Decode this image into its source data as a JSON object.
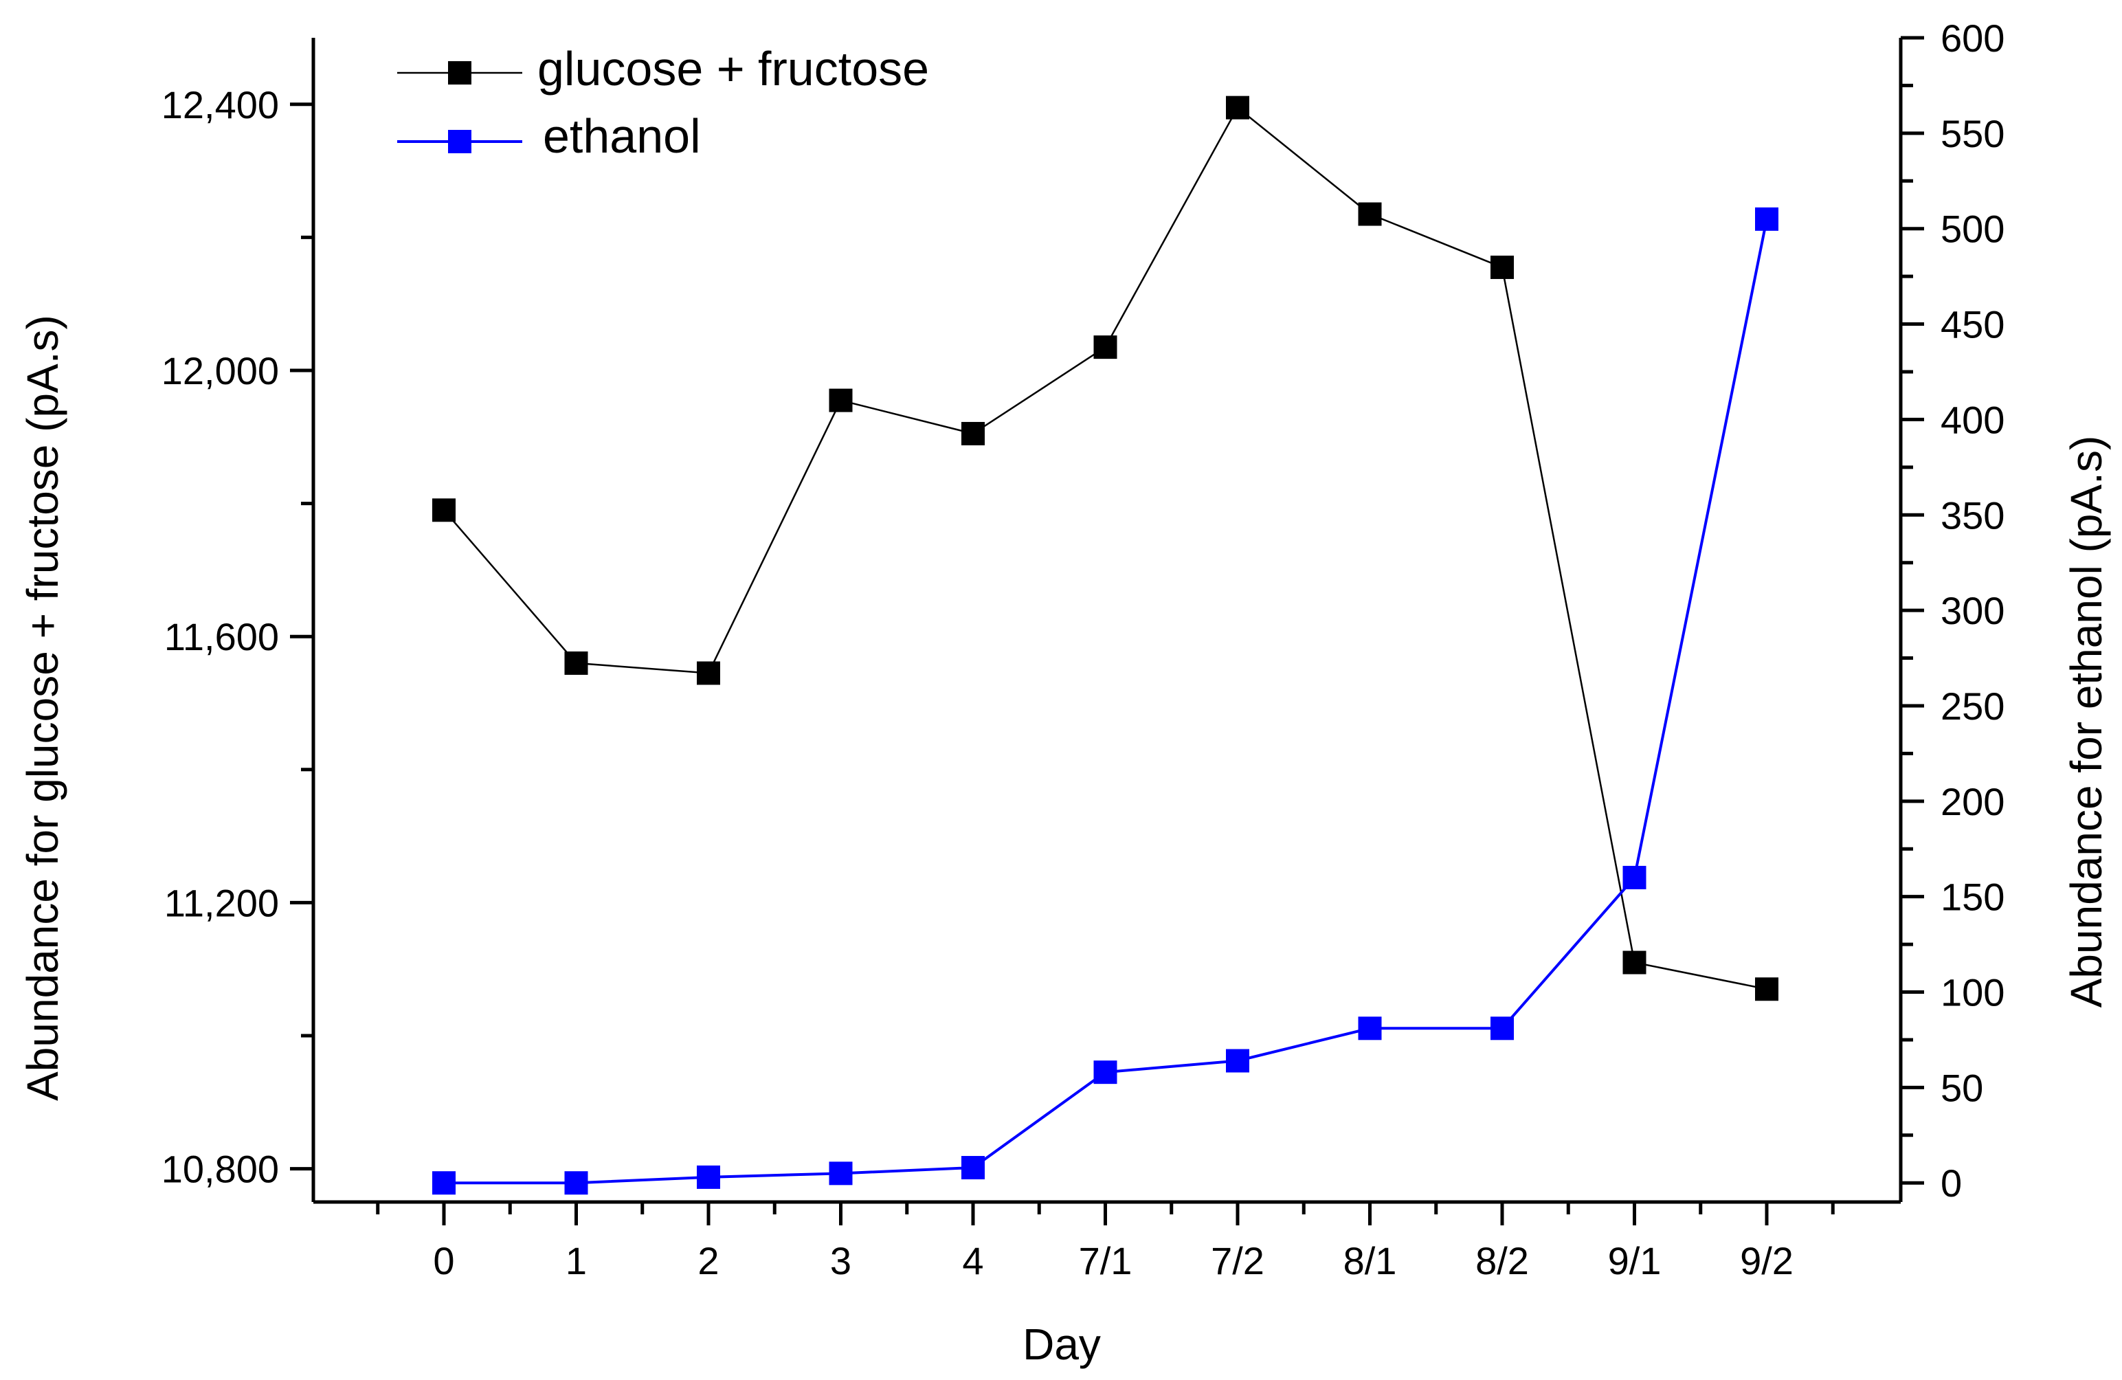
{
  "chart_data": {
    "type": "line",
    "categories": [
      "0",
      "1",
      "2",
      "3",
      "4",
      "7/1",
      "7/2",
      "8/1",
      "8/2",
      "9/1",
      "9/2"
    ],
    "xlabel": "Day",
    "ylabel_left": "Abundance  for glucose + fructose  (pA.s)",
    "ylabel_right": "Abundance for ethanol  (pA.s)",
    "ylim_left": [
      10750,
      12500
    ],
    "yticks_left": [
      10800,
      11200,
      11600,
      12000,
      12400
    ],
    "ytick_labels_left": [
      "10,800",
      "11,200",
      "11,600",
      "12,000",
      "12,400"
    ],
    "ylim_right": [
      -10,
      600
    ],
    "yticks_right": [
      0,
      50,
      100,
      150,
      200,
      250,
      300,
      350,
      400,
      450,
      500,
      550,
      600
    ],
    "ytick_labels_right": [
      "0",
      "50",
      "100",
      "150",
      "200",
      "250",
      "300",
      "350",
      "400",
      "450",
      "500",
      "550",
      "600"
    ],
    "grid": false,
    "legend_position": "top-left",
    "series": [
      {
        "name": "glucose + fructose",
        "axis": "left",
        "color": "#000000",
        "marker": "square",
        "values": [
          11790,
          11560,
          11545,
          11955,
          11905,
          12035,
          12395,
          12235,
          12155,
          11110,
          11070
        ]
      },
      {
        "name": "ethanol",
        "axis": "right",
        "color": "#0000ff",
        "marker": "square",
        "values": [
          0,
          0,
          3,
          5,
          8,
          58,
          64,
          81,
          81,
          160,
          505
        ]
      }
    ]
  }
}
